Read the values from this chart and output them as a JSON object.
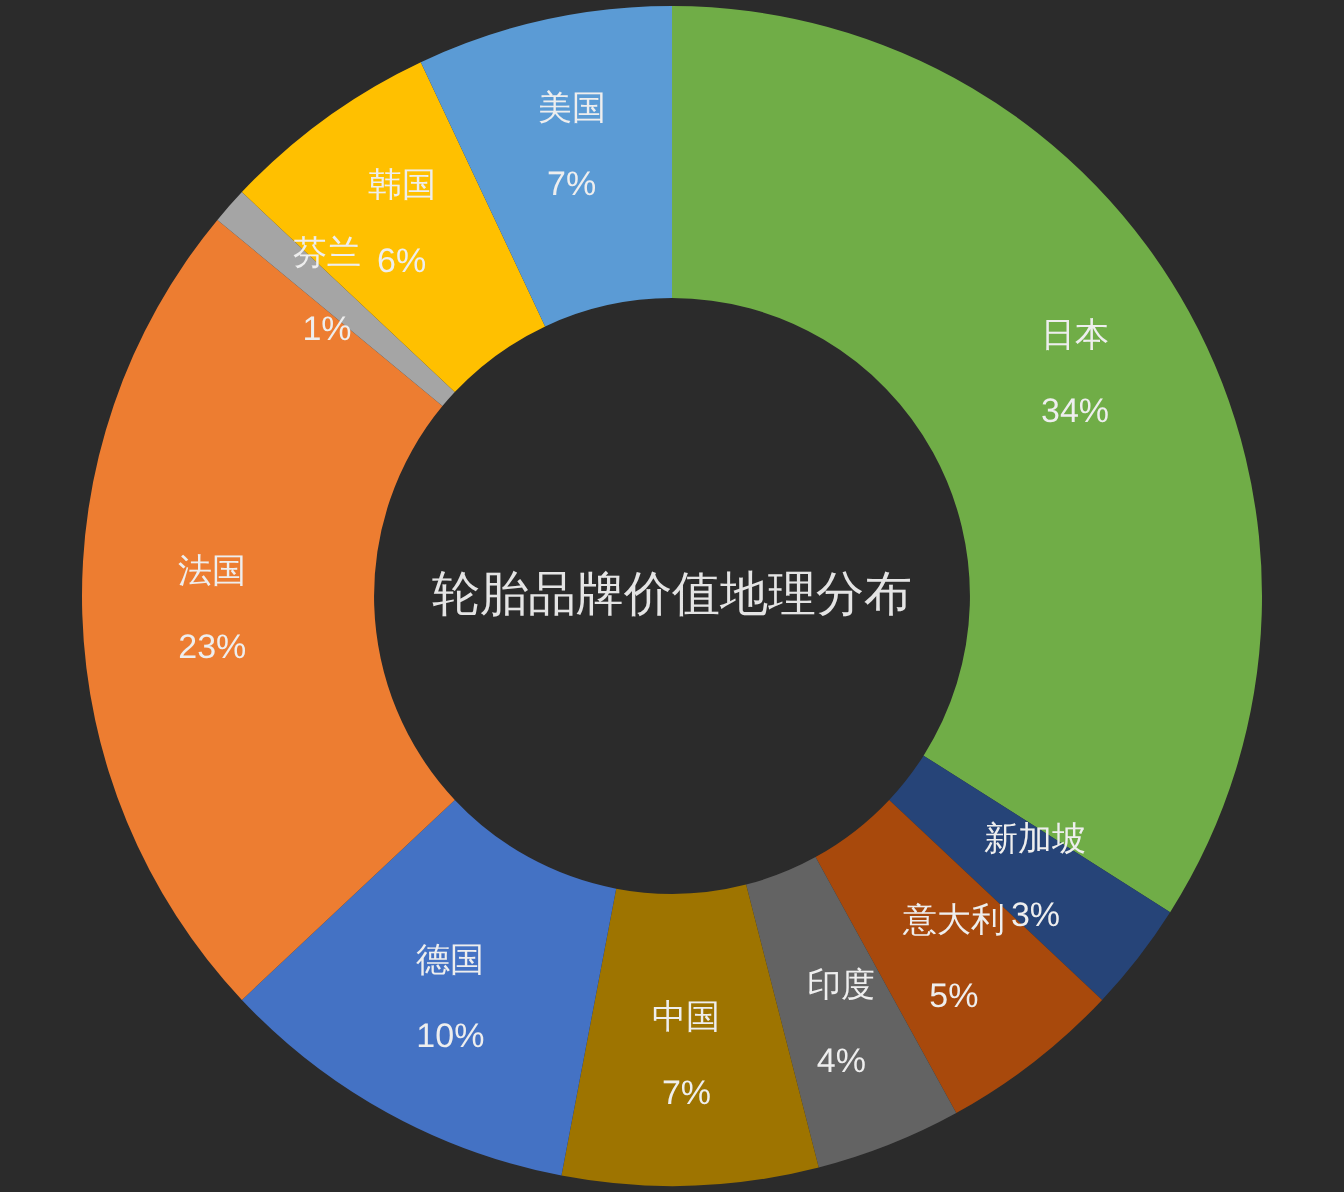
{
  "chart_data": {
    "type": "donut",
    "title": "轮胎品牌价值地理分布",
    "categories": [
      "日本",
      "新加坡",
      "意大利",
      "印度",
      "中国",
      "德国",
      "法国",
      "芬兰",
      "韩国",
      "美国"
    ],
    "values": [
      34,
      3,
      5,
      4,
      7,
      10,
      23,
      1,
      6,
      7
    ],
    "colors": [
      "#70ad47",
      "#264478",
      "#a8490c",
      "#636363",
      "#9e7400",
      "#4472c4",
      "#ed7d31",
      "#a5a5a5",
      "#ffc000",
      "#5b9bd5"
    ],
    "value_labels": [
      "34%",
      "3%",
      "5%",
      "4%",
      "7%",
      "10%",
      "23%",
      "1%",
      "6%",
      "7%"
    ]
  }
}
